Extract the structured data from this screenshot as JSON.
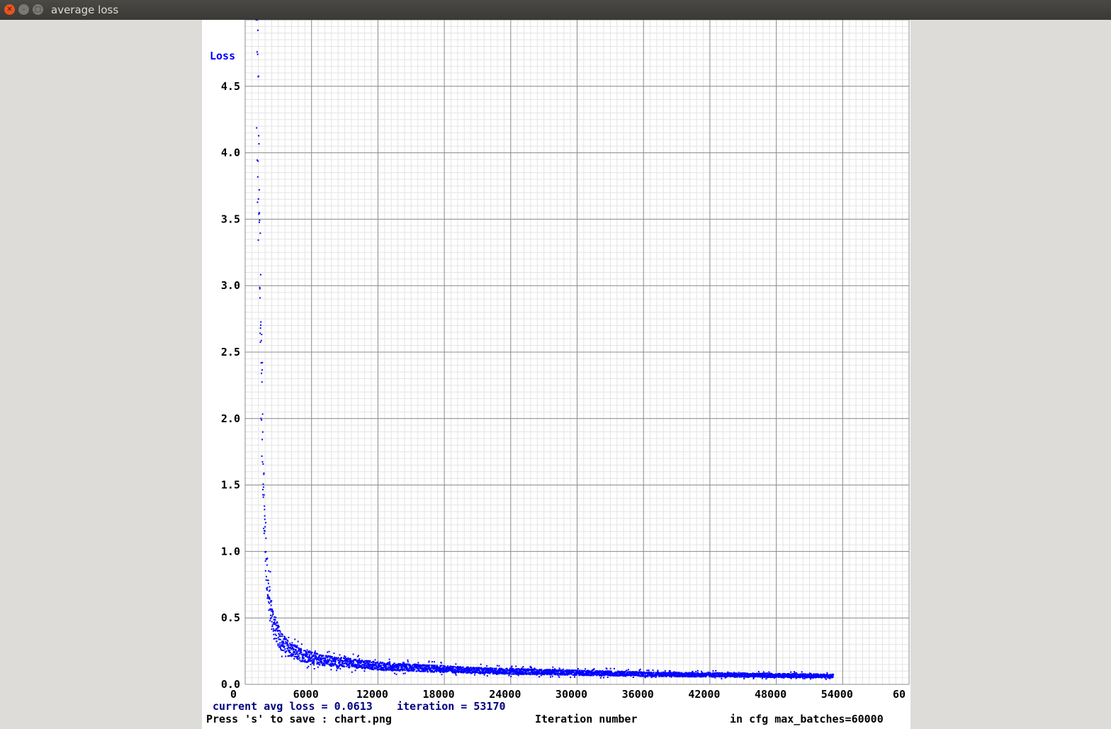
{
  "window": {
    "title": "average loss",
    "close_icon": "close-icon",
    "minimize_icon": "minimize-icon",
    "maximize_icon": "maximize-icon"
  },
  "chart_data": {
    "type": "scatter",
    "ylabel": "Loss",
    "xlabel": "Iteration number",
    "ylim": [
      0,
      5.0
    ],
    "xlim": [
      0,
      60000
    ],
    "yticks": [
      "0.0",
      "0.5",
      "1.0",
      "1.5",
      "2.0",
      "2.5",
      "3.0",
      "3.5",
      "4.0",
      "4.5"
    ],
    "xticks": [
      "0",
      "6000",
      "12000",
      "18000",
      "24000",
      "30000",
      "36000",
      "42000",
      "48000",
      "54000",
      "60"
    ],
    "grid": true,
    "color": "#0000ff",
    "series": [
      {
        "x": [
          0,
          100,
          200,
          300,
          400,
          500,
          600,
          700,
          800,
          1000,
          1200,
          1500,
          2000,
          2500,
          3000,
          4000,
          5000,
          6000,
          8000,
          10000,
          12000,
          15000,
          18000,
          21000,
          24000,
          27000,
          30000,
          33000,
          36000,
          39000,
          42000,
          45000,
          48000,
          51000,
          53170
        ],
        "y": [
          5.0,
          4.4,
          3.8,
          3.2,
          2.7,
          2.2,
          1.8,
          1.4,
          1.1,
          0.8,
          0.62,
          0.48,
          0.36,
          0.3,
          0.26,
          0.22,
          0.2,
          0.18,
          0.16,
          0.145,
          0.13,
          0.12,
          0.11,
          0.1,
          0.095,
          0.09,
          0.085,
          0.08,
          0.075,
          0.072,
          0.07,
          0.068,
          0.065,
          0.063,
          0.0613
        ]
      }
    ]
  },
  "status": {
    "avg_loss": "current avg loss = 0.0613",
    "iteration": "iteration = 53170",
    "save_hint": "Press 's' to save : chart.png",
    "max_batches": "in cfg max_batches=60000"
  }
}
